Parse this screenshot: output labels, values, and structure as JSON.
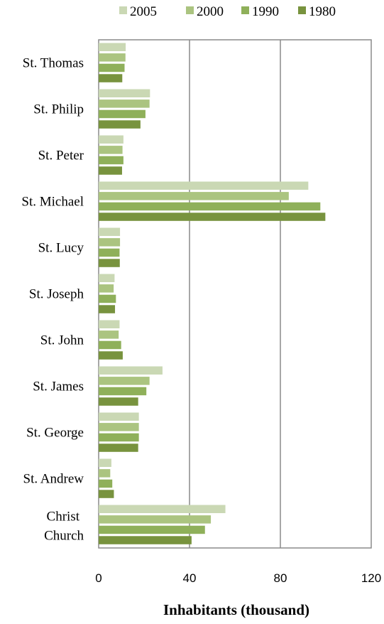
{
  "chart_data": {
    "type": "bar",
    "orientation": "horizontal",
    "categories": [
      "St. Thomas",
      "St. Philip",
      "St. Peter",
      "St. Michael",
      "St. Lucy",
      "St. Joseph",
      "St. John",
      "St. James",
      "St. George",
      "St. Andrew",
      "Christ Church"
    ],
    "series": [
      {
        "name": "2005",
        "color": "#cad8b4",
        "values": [
          11.9,
          22.6,
          10.9,
          92.3,
          9.4,
          7.0,
          9.2,
          28.1,
          17.7,
          5.6,
          55.8
        ]
      },
      {
        "name": "2000",
        "color": "#abc480",
        "values": [
          11.8,
          22.4,
          10.5,
          83.7,
          9.4,
          6.6,
          8.8,
          22.4,
          17.7,
          5.1,
          49.4
        ]
      },
      {
        "name": "1990",
        "color": "#8fb05a",
        "values": [
          11.4,
          20.6,
          10.9,
          97.6,
          9.2,
          7.6,
          9.9,
          21.0,
          17.7,
          6.0,
          46.8
        ]
      },
      {
        "name": "1980",
        "color": "#78933e",
        "values": [
          10.4,
          18.4,
          10.3,
          99.8,
          9.3,
          7.2,
          10.6,
          17.4,
          17.4,
          6.7,
          40.9
        ]
      }
    ],
    "xlabel": "Inhabitants (thousand)",
    "xlim": [
      0,
      120
    ],
    "xticks": [
      0,
      40,
      80,
      120
    ],
    "xtick_labels": [
      "0",
      "40",
      "80",
      "120"
    ],
    "grid": "vertical major gridlines",
    "legend_position": "top"
  }
}
